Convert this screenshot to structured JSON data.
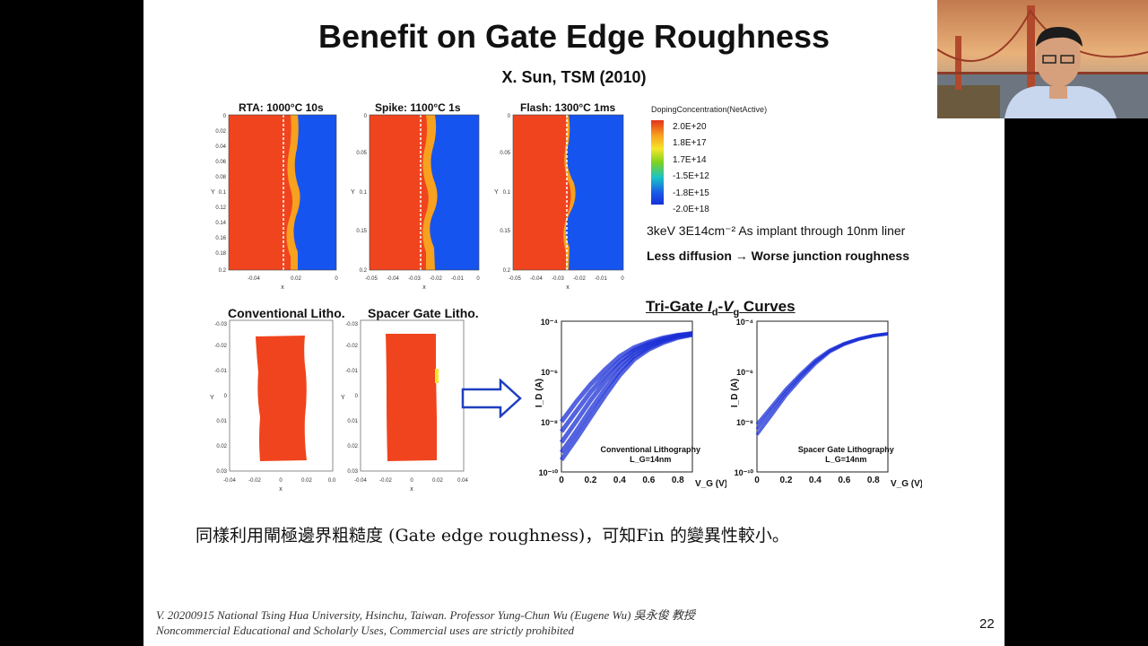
{
  "slide": {
    "title": "Benefit on Gate Edge Roughness",
    "subtitle": "X. Sun, TSM (2010)",
    "page_number": "22",
    "caption": "同樣利用閘極邊界粗糙度 (Gate edge roughness)，可知Fin 的變異性較小。",
    "footer_line1": "V. 20200915 National Tsing Hua University, Hsinchu, Taiwan. Professor Yung-Chun Wu (Eugene Wu) 吳永俊 教授",
    "footer_line2": "Noncommercial Educational and Scholarly Uses, Commercial uses are strictly prohibited"
  },
  "anneal_panels": [
    {
      "title": "RTA: 1000°C 10s",
      "x_ticks": [
        "-0.04",
        "0.02",
        "0"
      ],
      "y_ticks": [
        "0",
        "0.02",
        "0.04",
        "0.06",
        "0.08",
        "0.1",
        "0.12",
        "0.14",
        "0.16",
        "0.18",
        "0.2"
      ],
      "x_label": "x",
      "y_label": "Y"
    },
    {
      "title": "Spike: 1100°C 1s",
      "x_ticks": [
        "-0.05",
        "-0.04",
        "-0.03",
        "-0.02",
        "-0.01",
        "0"
      ],
      "y_ticks": [
        "0",
        "0.05",
        "0.1",
        "0.15",
        "0.2"
      ],
      "x_label": "x",
      "y_label": "Y"
    },
    {
      "title": "Flash: 1300°C 1ms",
      "x_ticks": [
        "-0.05",
        "-0.04",
        "-0.03",
        "-0.02",
        "-0.01",
        "0"
      ],
      "y_ticks": [
        "0",
        "0.05",
        "0.1",
        "0.15",
        "0.2"
      ],
      "x_label": "x",
      "y_label": "Y"
    }
  ],
  "legend": {
    "title": "DopingConcentration(NetActive)",
    "labels": [
      "2.0E+20",
      "1.8E+17",
      "1.7E+14",
      "-1.5E+12",
      "-1.8E+15",
      "-2.0E+18"
    ]
  },
  "notes": {
    "implant": "3keV 3E14cm⁻² As implant through 10nm liner",
    "conclusion": "Less diffusion → Worse junction roughness"
  },
  "litho": [
    {
      "title": "Conventional Litho.",
      "x_ticks": [
        "-0.04",
        "-0.02",
        "0",
        "0.02",
        "0.04"
      ],
      "y_ticks": [
        "-0.03",
        "-0.02",
        "-0.01",
        "0",
        "0.01",
        "0.02",
        "0.03"
      ],
      "x_label": "x",
      "y_label": "Y"
    },
    {
      "title": "Spacer Gate Litho.",
      "x_ticks": [
        "-0.04",
        "-0.02",
        "0",
        "0.02",
        "0.04"
      ],
      "y_ticks": [
        "-0.03",
        "-0.02",
        "-0.01",
        "0",
        "0.01",
        "0.02",
        "0.03"
      ],
      "x_label": "x",
      "y_label": "Y"
    }
  ],
  "trigate": {
    "title_prefix": "Tri-Gate ",
    "title_id": "I",
    "title_id_sub": "d",
    "title_dash": "-",
    "title_vg": "V",
    "title_vg_sub": "g",
    "title_suffix": " Curves"
  },
  "chart_data": [
    {
      "type": "line",
      "title": "Conventional Lithography",
      "annotation": "L_G=14nm",
      "xlabel": "V_G (V)",
      "ylabel": "I_D (A)",
      "y_scale": "log",
      "xlim": [
        0,
        0.9
      ],
      "ylim": [
        1e-10,
        0.0001
      ],
      "x_ticks": [
        "0",
        "0.2",
        "0.4",
        "0.6",
        "0.8"
      ],
      "y_ticks": [
        "10⁻¹⁰",
        "10⁻⁸",
        "10⁻⁶",
        "10⁻⁴"
      ],
      "x": [
        0,
        0.1,
        0.2,
        0.3,
        0.4,
        0.5,
        0.6,
        0.7,
        0.8,
        0.9
      ],
      "series": [
        {
          "values": [
            1e-08,
            6e-08,
            3e-07,
            1.2e-06,
            4e-06,
            9e-06,
            1.5e-05,
            2.2e-05,
            2.8e-05,
            3.3e-05
          ]
        },
        {
          "values": [
            4e-09,
            2.5e-08,
            1.5e-07,
            7e-07,
            2.6e-06,
            7e-06,
            1.3e-05,
            2e-05,
            2.7e-05,
            3.2e-05
          ]
        },
        {
          "values": [
            1.5e-09,
            1e-08,
            7e-08,
            4e-07,
            1.8e-06,
            5.5e-06,
            1.1e-05,
            1.8e-05,
            2.6e-05,
            3.1e-05
          ]
        },
        {
          "values": [
            6e-10,
            4e-09,
            3e-08,
            2e-07,
            1.1e-06,
            4e-06,
            9e-06,
            1.6e-05,
            2.4e-05,
            3e-05
          ]
        },
        {
          "values": [
            3e-10,
            2e-09,
            1.5e-08,
            1.1e-07,
            7e-07,
            3e-06,
            7.5e-06,
            1.4e-05,
            2.2e-05,
            2.9e-05
          ]
        }
      ]
    },
    {
      "type": "line",
      "title": "Spacer Gate Lithography",
      "annotation": "L_G=14nm",
      "xlabel": "V_G (V)",
      "ylabel": "I_D (A)",
      "y_scale": "log",
      "xlim": [
        0,
        0.9
      ],
      "ylim": [
        1e-10,
        0.0001
      ],
      "x_ticks": [
        "0",
        "0.2",
        "0.4",
        "0.6",
        "0.8"
      ],
      "y_ticks": [
        "10⁻¹⁰",
        "10⁻⁸",
        "10⁻⁶",
        "10⁻⁴"
      ],
      "x": [
        0,
        0.1,
        0.2,
        0.3,
        0.4,
        0.5,
        0.6,
        0.7,
        0.8,
        0.9
      ],
      "series": [
        {
          "values": [
            8e-09,
            4e-08,
            2e-07,
            8e-07,
            2.8e-06,
            7e-06,
            1.3e-05,
            2e-05,
            2.7e-05,
            3.2e-05
          ]
        },
        {
          "values": [
            5e-09,
            2.8e-08,
            1.5e-07,
            6.5e-07,
            2.4e-06,
            6.5e-06,
            1.25e-05,
            1.95e-05,
            2.65e-05,
            3.15e-05
          ]
        },
        {
          "values": [
            3e-09,
            1.8e-08,
            1.1e-07,
            5e-07,
            2e-06,
            6e-06,
            1.2e-05,
            1.9e-05,
            2.6e-05,
            3.1e-05
          ]
        }
      ]
    }
  ],
  "colors": {
    "doping_red": "#f0441e",
    "doping_orange": "#f7a11f",
    "doping_blue": "#1654f0",
    "curve_blue": "#1b2fd6",
    "arrow_blue": "#1f3fbf"
  }
}
